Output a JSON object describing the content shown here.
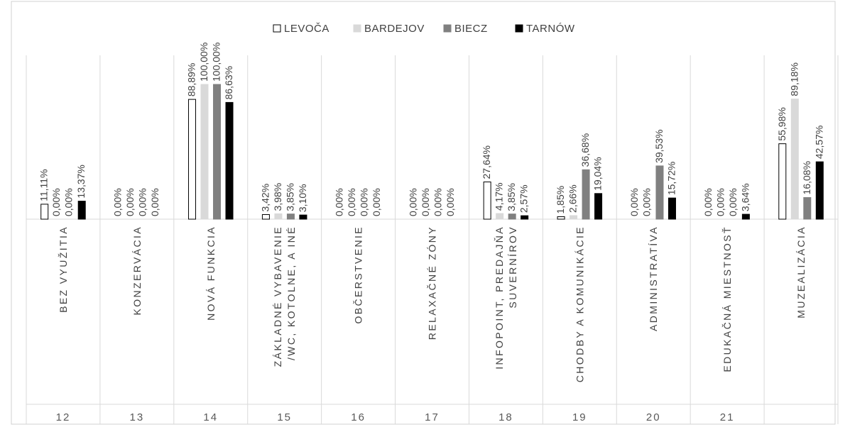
{
  "chart_data": {
    "type": "bar",
    "legend_position": "top",
    "series": [
      {
        "name": "LEVOČA",
        "color": "#ffffff",
        "stroke": "#000000",
        "values": [
          11.11,
          0.0,
          88.89,
          3.42,
          0.0,
          0.0,
          27.64,
          1.85,
          0.0,
          0.0,
          55.98
        ]
      },
      {
        "name": "BARDEJOV",
        "color": "#d9d9d9",
        "stroke": "#d9d9d9",
        "values": [
          0.0,
          0.0,
          100.0,
          3.98,
          0.0,
          0.0,
          4.17,
          2.66,
          0.0,
          0.0,
          89.18
        ]
      },
      {
        "name": "BIECZ",
        "color": "#808080",
        "stroke": "#808080",
        "values": [
          0.0,
          0.0,
          100.0,
          3.85,
          0.0,
          0.0,
          3.85,
          36.68,
          39.53,
          0.0,
          16.08
        ]
      },
      {
        "name": "TARNÓW",
        "color": "#000000",
        "stroke": "#000000",
        "values": [
          13.37,
          0.0,
          86.63,
          3.1,
          0.0,
          0.0,
          2.57,
          19.04,
          15.72,
          3.64,
          42.57
        ]
      }
    ],
    "labels": [
      [
        "11,11%",
        "0,00%",
        "88,89%",
        "3,42%",
        "0,00%",
        "0,00%",
        "27,64%",
        "1,85%",
        "0,00%",
        "0,00%",
        "55,98%"
      ],
      [
        "0,00%",
        "0,00%",
        "100,00%",
        "3,98%",
        "0,00%",
        "0,00%",
        "4,17%",
        "2,66%",
        "0,00%",
        "0,00%",
        "89,18%"
      ],
      [
        "0,00%",
        "0,00%",
        "100,00%",
        "3,85%",
        "0,00%",
        "0,00%",
        "3,85%",
        "36,68%",
        "39,53%",
        "0,00%",
        "16,08%"
      ],
      [
        "13,37%",
        "0,00%",
        "86,63%",
        "3,10%",
        "0,00%",
        "0,00%",
        "2,57%",
        "19,04%",
        "15,72%",
        "3,64%",
        "42,57%"
      ]
    ],
    "categories": [
      {
        "lines": [
          "BEZ VYUŽITIA"
        ]
      },
      {
        "lines": [
          "KONZERVÁCIA"
        ]
      },
      {
        "lines": [
          "NOVÁ FUNKCIA"
        ]
      },
      {
        "lines": [
          "ZÁKLADNÉ VYBAVENIE",
          "/WC, KOTOLNE, A INÉ"
        ]
      },
      {
        "lines": [
          "OBČERSTVENIE"
        ]
      },
      {
        "lines": [
          "RELAXAČNÉ ZÓNY"
        ]
      },
      {
        "lines": [
          "INFOPOINT, PREDAJŇA",
          "SUVERNÍROV"
        ]
      },
      {
        "lines": [
          "CHODBY A KOMUNIKÁCIE"
        ]
      },
      {
        "lines": [
          "ADMINISTRATÍVA"
        ]
      },
      {
        "lines": [
          "EDUKAČNÁ MIESTNOSŤ"
        ]
      },
      {
        "lines": [
          "MUZEALIZÁCIA"
        ]
      }
    ],
    "category_numbers": [
      "12",
      "13",
      "14",
      "15",
      "16",
      "17",
      "18",
      "19",
      "20",
      "21"
    ],
    "ylim": [
      0,
      100
    ],
    "grid": false
  }
}
